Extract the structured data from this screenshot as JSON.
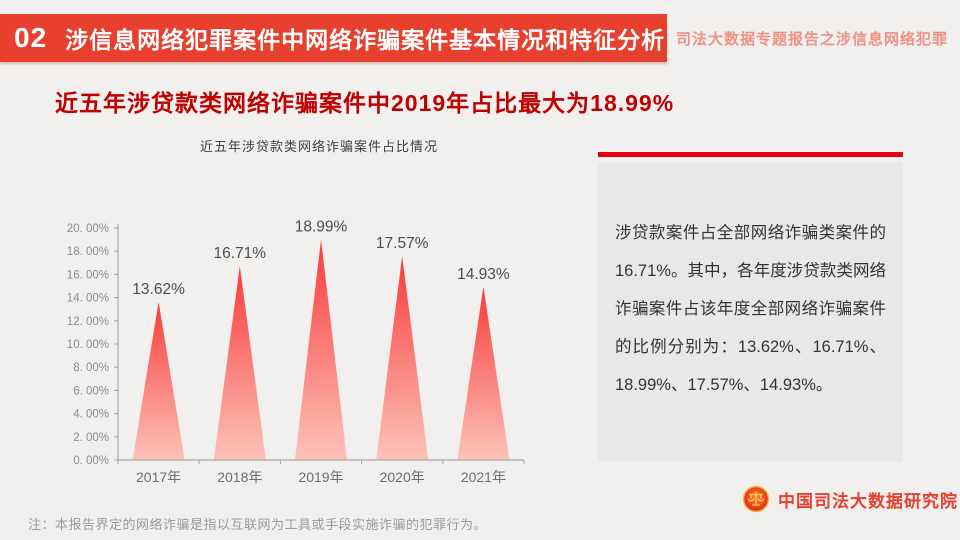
{
  "banner": {
    "number": "02",
    "title": "涉信息网络犯罪案件中网络诈骗案件基本情况和特征分析",
    "side_text": "司法大数据专题报告之涉信息网络犯罪"
  },
  "headline": "近五年涉贷款类网络诈骗案件中2019年占比最大为18.99%",
  "chart_data": {
    "type": "bar",
    "shape": "triangle-peak",
    "title": "近五年涉贷款类网络诈骗案件占比情况",
    "categories": [
      "2017年",
      "2018年",
      "2019年",
      "2020年",
      "2021年"
    ],
    "values": [
      13.62,
      16.71,
      18.99,
      17.57,
      14.93
    ],
    "data_labels": [
      "13.62%",
      "16.71%",
      "18.99%",
      "17.57%",
      "14.93%"
    ],
    "y_tick_labels": [
      "0. 00%",
      "2. 00%",
      "4. 00%",
      "6. 00%",
      "8. 00%",
      "10. 00%",
      "12. 00%",
      "14. 00%",
      "16. 00%",
      "18. 00%",
      "20. 00%"
    ],
    "ylim": [
      0,
      20
    ],
    "grid": false,
    "legend": "none",
    "colors": {
      "peak_top": "#f83b3b",
      "peak_bottom": "#fcc3b8",
      "axis": "#a8a8a8",
      "tick_label": "#8c8c8c",
      "data_label": "#4d4d4d",
      "category_label": "#6e6e6e"
    }
  },
  "panel": {
    "body": "涉贷款案件占全部网络诈骗类案件的16.71%。其中，各年度涉贷款类网络诈骗案件占该年度全部网络诈骗案件的比例分别为：13.62%、16.71%、18.99%、17.57%、14.93%。"
  },
  "footer": {
    "note": "注：本报告界定的网络诈骗是指以互联网为工具或手段实施诈骗的犯罪行为。",
    "org_name": "中国司法大数据研究院"
  },
  "colors": {
    "banner_bg": "#e8402f",
    "banner_side_text": "#ef9184",
    "headline": "#c00000",
    "panel_bar": "#e60012",
    "panel_bg": "#e9e8e6",
    "page_bg": "#f1f0ee"
  }
}
